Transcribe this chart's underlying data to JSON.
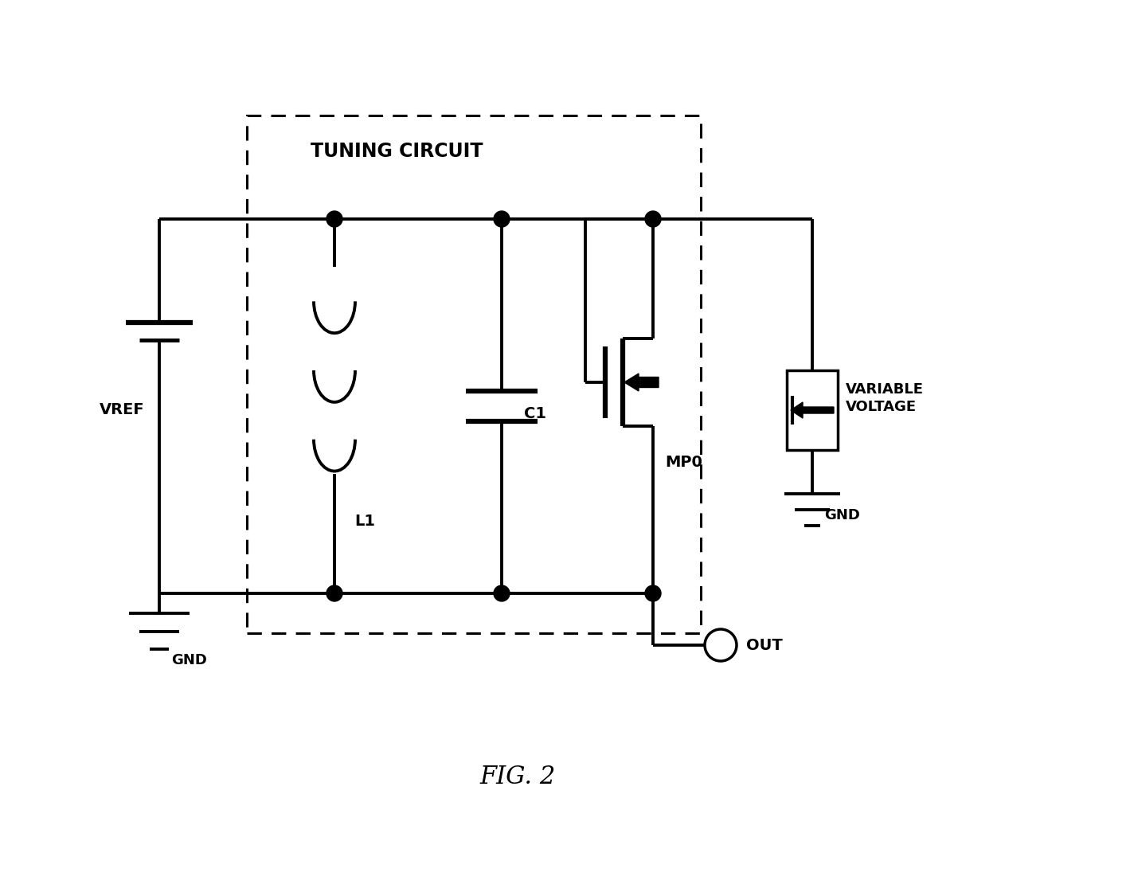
{
  "title": "FIG. 2",
  "tuning_circuit_label": "TUNING CIRCUIT",
  "label_vref": "VREF",
  "label_gnd1": "GND",
  "label_l1": "L1",
  "label_c1": "C1",
  "label_mp0": "MP0",
  "label_var_voltage": "VARIABLE\nVOLTAGE",
  "label_gnd2": "GND",
  "label_out": "OUT",
  "bg_color": "#ffffff",
  "line_color": "#000000",
  "fig_width": 14.19,
  "fig_height": 11.25
}
